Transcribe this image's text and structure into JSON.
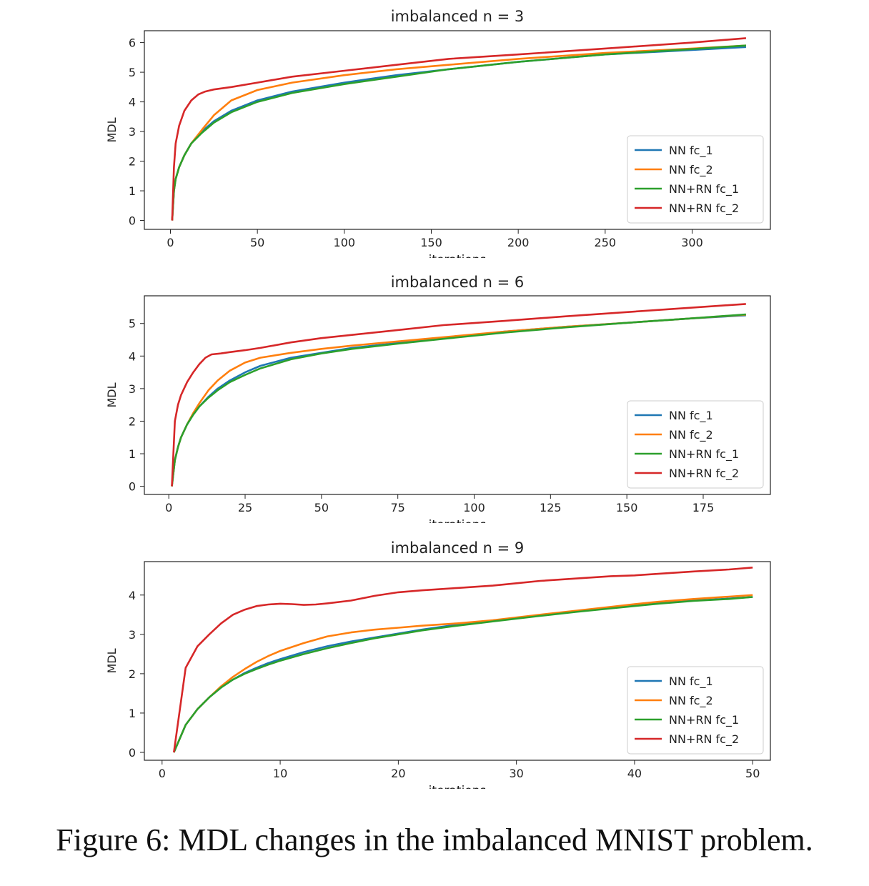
{
  "caption": "Figure 6: MDL changes in the imbalanced MNIST problem.",
  "colors": {
    "NN fc_1": "#1f77b4",
    "NN fc_2": "#ff7f0e",
    "NN+RN fc_1": "#2ca02c",
    "NN+RN fc_2": "#d62728"
  },
  "chart_data": [
    {
      "type": "line",
      "title": "imbalanced n = 3",
      "xlabel": "iterations",
      "ylabel": "MDL",
      "xlim": [
        -15,
        345
      ],
      "ylim": [
        -0.3,
        6.4
      ],
      "xticks": [
        0,
        50,
        100,
        150,
        200,
        250,
        300
      ],
      "yticks": [
        0,
        1,
        2,
        3,
        4,
        5,
        6
      ],
      "legend": "lower-right",
      "series": [
        {
          "name": "NN fc_1",
          "x": [
            1,
            2,
            3,
            5,
            8,
            12,
            18,
            25,
            35,
            50,
            70,
            100,
            130,
            160,
            200,
            250,
            300,
            331
          ],
          "y": [
            0,
            1.0,
            1.4,
            1.8,
            2.2,
            2.6,
            3.0,
            3.35,
            3.7,
            4.05,
            4.35,
            4.65,
            4.9,
            5.1,
            5.35,
            5.6,
            5.75,
            5.85
          ]
        },
        {
          "name": "NN fc_2",
          "x": [
            1,
            2,
            3,
            5,
            8,
            12,
            18,
            25,
            35,
            50,
            70,
            100,
            130,
            160,
            200,
            250,
            300,
            331
          ],
          "y": [
            0,
            1.0,
            1.4,
            1.8,
            2.2,
            2.6,
            3.05,
            3.55,
            4.05,
            4.4,
            4.65,
            4.9,
            5.1,
            5.25,
            5.45,
            5.65,
            5.8,
            5.9
          ]
        },
        {
          "name": "NN+RN fc_1",
          "x": [
            1,
            2,
            3,
            5,
            8,
            12,
            18,
            25,
            35,
            50,
            70,
            100,
            130,
            160,
            200,
            250,
            300,
            331
          ],
          "y": [
            0,
            1.0,
            1.4,
            1.8,
            2.2,
            2.6,
            2.95,
            3.3,
            3.65,
            4.0,
            4.3,
            4.6,
            4.85,
            5.1,
            5.35,
            5.6,
            5.78,
            5.9
          ]
        },
        {
          "name": "NN+RN fc_2",
          "x": [
            1,
            2,
            3,
            5,
            8,
            12,
            16,
            20,
            25,
            35,
            50,
            70,
            100,
            130,
            160,
            200,
            250,
            300,
            331
          ],
          "y": [
            0,
            1.8,
            2.6,
            3.2,
            3.7,
            4.05,
            4.25,
            4.35,
            4.42,
            4.5,
            4.65,
            4.85,
            5.05,
            5.25,
            5.45,
            5.6,
            5.8,
            6.0,
            6.15
          ]
        }
      ]
    },
    {
      "type": "line",
      "title": "imbalanced n = 6",
      "xlabel": "iterations",
      "ylabel": "MDL",
      "xlim": [
        -8,
        197
      ],
      "ylim": [
        -0.25,
        5.85
      ],
      "xticks": [
        0,
        25,
        50,
        75,
        100,
        125,
        150,
        175
      ],
      "yticks": [
        0,
        1,
        2,
        3,
        4,
        5
      ],
      "legend": "lower-right",
      "series": [
        {
          "name": "NN fc_1",
          "x": [
            1,
            2,
            3,
            4,
            6,
            8,
            10,
            13,
            16,
            20,
            25,
            30,
            40,
            50,
            60,
            75,
            90,
            110,
            130,
            150,
            170,
            189
          ],
          "y": [
            0,
            0.8,
            1.2,
            1.5,
            1.9,
            2.2,
            2.45,
            2.75,
            3.0,
            3.25,
            3.5,
            3.7,
            3.95,
            4.1,
            4.25,
            4.4,
            4.55,
            4.75,
            4.9,
            5.02,
            5.15,
            5.25
          ]
        },
        {
          "name": "NN fc_2",
          "x": [
            1,
            2,
            3,
            4,
            6,
            8,
            10,
            13,
            16,
            20,
            25,
            30,
            40,
            50,
            60,
            75,
            90,
            110,
            130,
            150,
            170,
            189
          ],
          "y": [
            0,
            0.8,
            1.2,
            1.5,
            1.9,
            2.25,
            2.55,
            2.95,
            3.25,
            3.55,
            3.8,
            3.95,
            4.1,
            4.22,
            4.32,
            4.45,
            4.58,
            4.75,
            4.9,
            5.02,
            5.15,
            5.27
          ]
        },
        {
          "name": "NN+RN fc_1",
          "x": [
            1,
            2,
            3,
            4,
            6,
            8,
            10,
            13,
            16,
            20,
            25,
            30,
            40,
            50,
            60,
            75,
            90,
            110,
            130,
            150,
            170,
            189
          ],
          "y": [
            0,
            0.8,
            1.2,
            1.5,
            1.9,
            2.2,
            2.45,
            2.72,
            2.95,
            3.2,
            3.42,
            3.62,
            3.9,
            4.08,
            4.22,
            4.38,
            4.53,
            4.72,
            4.88,
            5.02,
            5.15,
            5.28
          ]
        },
        {
          "name": "NN+RN fc_2",
          "x": [
            1,
            2,
            3,
            4,
            6,
            8,
            10,
            12,
            14,
            17,
            20,
            25,
            30,
            40,
            50,
            60,
            75,
            90,
            110,
            130,
            150,
            170,
            189
          ],
          "y": [
            0,
            2.0,
            2.5,
            2.8,
            3.2,
            3.5,
            3.75,
            3.95,
            4.05,
            4.08,
            4.12,
            4.18,
            4.25,
            4.42,
            4.55,
            4.65,
            4.8,
            4.95,
            5.08,
            5.22,
            5.35,
            5.48,
            5.6
          ]
        }
      ]
    },
    {
      "type": "line",
      "title": "imbalanced n = 9",
      "xlabel": "iterations",
      "ylabel": "MDL",
      "xlim": [
        -1.5,
        51.5
      ],
      "ylim": [
        -0.2,
        4.85
      ],
      "xticks": [
        0,
        10,
        20,
        30,
        40,
        50
      ],
      "yticks": [
        0,
        1,
        2,
        3,
        4
      ],
      "legend": "lower-right",
      "series": [
        {
          "name": "NN fc_1",
          "x": [
            1,
            2,
            3,
            4,
            5,
            6,
            7,
            8,
            9,
            10,
            12,
            14,
            16,
            18,
            20,
            22,
            25,
            28,
            30,
            32,
            35,
            38,
            40,
            42,
            45,
            48,
            50
          ],
          "y": [
            0,
            0.7,
            1.1,
            1.4,
            1.65,
            1.85,
            2.02,
            2.15,
            2.27,
            2.37,
            2.55,
            2.7,
            2.82,
            2.92,
            3.02,
            3.12,
            3.25,
            3.35,
            3.42,
            3.48,
            3.58,
            3.68,
            3.74,
            3.8,
            3.86,
            3.91,
            3.95
          ]
        },
        {
          "name": "NN fc_2",
          "x": [
            1,
            2,
            3,
            4,
            5,
            6,
            7,
            8,
            9,
            10,
            12,
            14,
            16,
            18,
            20,
            22,
            25,
            28,
            30,
            32,
            35,
            38,
            40,
            42,
            45,
            48,
            50
          ],
          "y": [
            0,
            0.7,
            1.1,
            1.4,
            1.68,
            1.92,
            2.12,
            2.3,
            2.45,
            2.58,
            2.78,
            2.95,
            3.05,
            3.12,
            3.17,
            3.22,
            3.28,
            3.36,
            3.43,
            3.5,
            3.6,
            3.7,
            3.77,
            3.83,
            3.9,
            3.96,
            4.0
          ]
        },
        {
          "name": "NN+RN fc_1",
          "x": [
            1,
            2,
            3,
            4,
            5,
            6,
            7,
            8,
            9,
            10,
            12,
            14,
            16,
            18,
            20,
            22,
            25,
            28,
            30,
            32,
            35,
            38,
            40,
            42,
            45,
            48,
            50
          ],
          "y": [
            0,
            0.7,
            1.1,
            1.4,
            1.65,
            1.85,
            2.0,
            2.12,
            2.23,
            2.33,
            2.5,
            2.65,
            2.78,
            2.9,
            3.0,
            3.1,
            3.22,
            3.33,
            3.4,
            3.47,
            3.57,
            3.66,
            3.72,
            3.78,
            3.85,
            3.9,
            3.95
          ]
        },
        {
          "name": "NN+RN fc_2",
          "x": [
            1,
            2,
            3,
            4,
            5,
            6,
            7,
            8,
            9,
            10,
            11,
            12,
            13,
            14,
            16,
            18,
            20,
            22,
            25,
            28,
            30,
            32,
            35,
            38,
            40,
            42,
            45,
            48,
            50
          ],
          "y": [
            0,
            2.15,
            2.7,
            3.0,
            3.28,
            3.5,
            3.63,
            3.72,
            3.76,
            3.78,
            3.77,
            3.75,
            3.76,
            3.79,
            3.86,
            3.98,
            4.07,
            4.12,
            4.18,
            4.24,
            4.3,
            4.36,
            4.42,
            4.48,
            4.5,
            4.54,
            4.6,
            4.65,
            4.7
          ]
        }
      ]
    }
  ]
}
